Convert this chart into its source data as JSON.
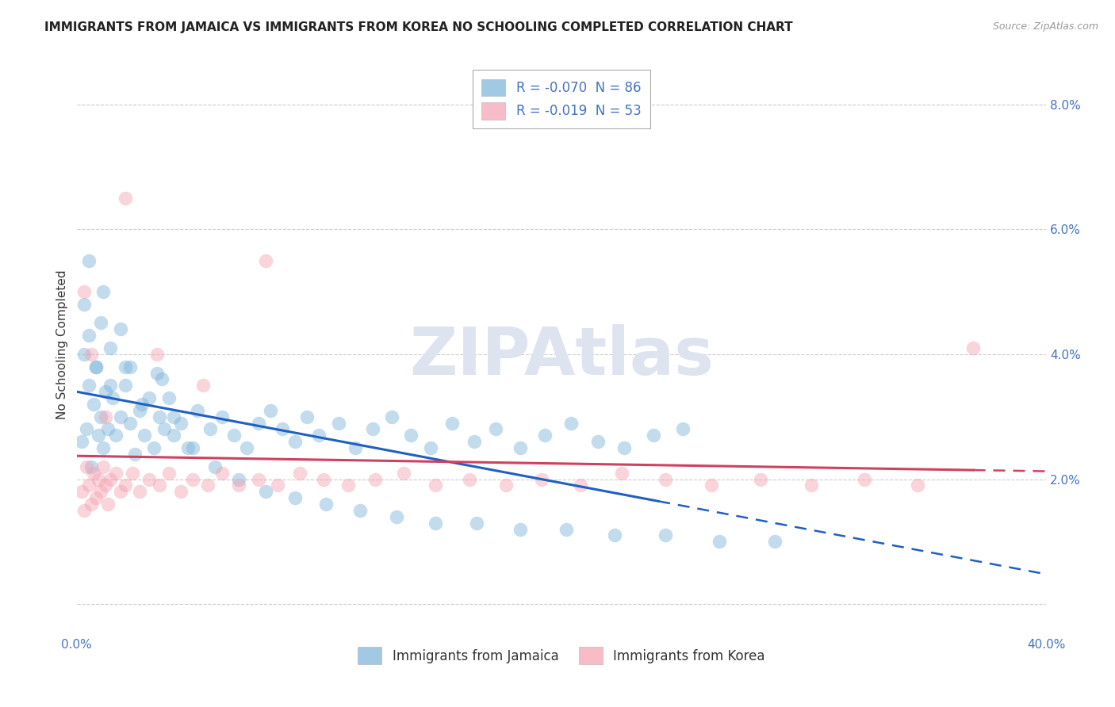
{
  "title": "IMMIGRANTS FROM JAMAICA VS IMMIGRANTS FROM KOREA NO SCHOOLING COMPLETED CORRELATION CHART",
  "source": "Source: ZipAtlas.com",
  "xlabel": "",
  "ylabel": "No Schooling Completed",
  "xlim": [
    0.0,
    0.4
  ],
  "ylim": [
    -0.005,
    0.088
  ],
  "xticks": [
    0.0,
    0.05,
    0.1,
    0.15,
    0.2,
    0.25,
    0.3,
    0.35,
    0.4
  ],
  "yticks": [
    0.0,
    0.02,
    0.04,
    0.06,
    0.08
  ],
  "ytick_labels": [
    "",
    "2.0%",
    "4.0%",
    "6.0%",
    "8.0%"
  ],
  "background_color": "#ffffff",
  "grid_color": "#cccccc",
  "title_fontsize": 11,
  "label_fontsize": 11,
  "tick_fontsize": 11,
  "legend_fontsize": 12,
  "watermark_text": "ZIPAtlas",
  "watermark_color": "#dde3ef",
  "watermark_fontsize": 60,
  "jamaica_color": "#7ab3d9",
  "korea_color": "#f4a0b0",
  "jamaica_line_color": "#2060c0",
  "korea_line_color": "#d04060",
  "jamaica_R": -0.07,
  "jamaica_N": 86,
  "korea_R": -0.019,
  "korea_N": 53,
  "jamaica_label": "Immigrants from Jamaica",
  "korea_label": "Immigrants from Korea",
  "jamaica_x": [
    0.002,
    0.003,
    0.004,
    0.005,
    0.006,
    0.007,
    0.008,
    0.009,
    0.01,
    0.011,
    0.012,
    0.013,
    0.014,
    0.015,
    0.016,
    0.018,
    0.02,
    0.022,
    0.024,
    0.026,
    0.028,
    0.03,
    0.032,
    0.034,
    0.036,
    0.038,
    0.04,
    0.043,
    0.046,
    0.05,
    0.055,
    0.06,
    0.065,
    0.07,
    0.075,
    0.08,
    0.085,
    0.09,
    0.095,
    0.1,
    0.108,
    0.115,
    0.122,
    0.13,
    0.138,
    0.146,
    0.155,
    0.164,
    0.173,
    0.183,
    0.193,
    0.204,
    0.215,
    0.226,
    0.238,
    0.25,
    0.003,
    0.005,
    0.008,
    0.011,
    0.014,
    0.018,
    0.022,
    0.027,
    0.033,
    0.04,
    0.048,
    0.057,
    0.067,
    0.078,
    0.09,
    0.103,
    0.117,
    0.132,
    0.148,
    0.165,
    0.183,
    0.202,
    0.222,
    0.243,
    0.265,
    0.288,
    0.005,
    0.01,
    0.02,
    0.035
  ],
  "jamaica_y": [
    0.026,
    0.04,
    0.028,
    0.035,
    0.022,
    0.032,
    0.038,
    0.027,
    0.03,
    0.025,
    0.034,
    0.028,
    0.041,
    0.033,
    0.027,
    0.03,
    0.035,
    0.029,
    0.024,
    0.031,
    0.027,
    0.033,
    0.025,
    0.03,
    0.028,
    0.033,
    0.027,
    0.029,
    0.025,
    0.031,
    0.028,
    0.03,
    0.027,
    0.025,
    0.029,
    0.031,
    0.028,
    0.026,
    0.03,
    0.027,
    0.029,
    0.025,
    0.028,
    0.03,
    0.027,
    0.025,
    0.029,
    0.026,
    0.028,
    0.025,
    0.027,
    0.029,
    0.026,
    0.025,
    0.027,
    0.028,
    0.048,
    0.043,
    0.038,
    0.05,
    0.035,
    0.044,
    0.038,
    0.032,
    0.037,
    0.03,
    0.025,
    0.022,
    0.02,
    0.018,
    0.017,
    0.016,
    0.015,
    0.014,
    0.013,
    0.013,
    0.012,
    0.012,
    0.011,
    0.011,
    0.01,
    0.01,
    0.055,
    0.045,
    0.038,
    0.036
  ],
  "korea_x": [
    0.002,
    0.003,
    0.004,
    0.005,
    0.006,
    0.007,
    0.008,
    0.009,
    0.01,
    0.011,
    0.012,
    0.013,
    0.014,
    0.016,
    0.018,
    0.02,
    0.023,
    0.026,
    0.03,
    0.034,
    0.038,
    0.043,
    0.048,
    0.054,
    0.06,
    0.067,
    0.075,
    0.083,
    0.092,
    0.102,
    0.112,
    0.123,
    0.135,
    0.148,
    0.162,
    0.177,
    0.192,
    0.208,
    0.225,
    0.243,
    0.262,
    0.282,
    0.303,
    0.325,
    0.347,
    0.37,
    0.003,
    0.006,
    0.012,
    0.02,
    0.033,
    0.052,
    0.078
  ],
  "korea_y": [
    0.018,
    0.015,
    0.022,
    0.019,
    0.016,
    0.021,
    0.017,
    0.02,
    0.018,
    0.022,
    0.019,
    0.016,
    0.02,
    0.021,
    0.018,
    0.019,
    0.021,
    0.018,
    0.02,
    0.019,
    0.021,
    0.018,
    0.02,
    0.019,
    0.021,
    0.019,
    0.02,
    0.019,
    0.021,
    0.02,
    0.019,
    0.02,
    0.021,
    0.019,
    0.02,
    0.019,
    0.02,
    0.019,
    0.021,
    0.02,
    0.019,
    0.02,
    0.019,
    0.02,
    0.019,
    0.041,
    0.05,
    0.04,
    0.03,
    0.065,
    0.04,
    0.035,
    0.055
  ]
}
